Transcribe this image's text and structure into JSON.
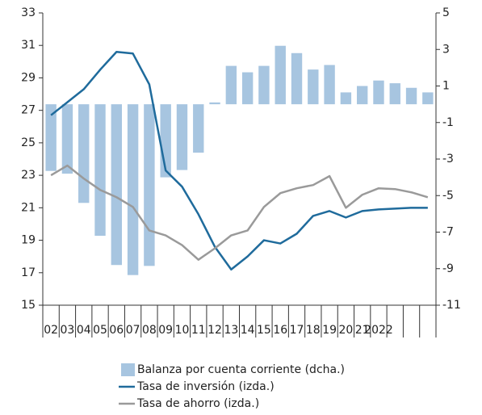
{
  "chart_data": {
    "type": "bar-line",
    "categories": [
      "02",
      "03",
      "04",
      "05",
      "06",
      "07",
      "08",
      "09",
      "10",
      "11",
      "12",
      "13",
      "14",
      "15",
      "16",
      "17",
      "18",
      "19",
      "20",
      "21",
      "2022",
      null,
      null,
      null
    ],
    "series": [
      {
        "name": "Balanza por cuenta corriente (dcha.)",
        "type": "bar",
        "axis": "y2",
        "color": "#a7c5e0",
        "values": [
          -3.65,
          -3.8,
          -5.4,
          -7.2,
          -8.8,
          -9.35,
          -8.85,
          -4.0,
          -3.6,
          -2.65,
          0.1,
          2.1,
          1.75,
          2.1,
          3.2,
          2.8,
          1.9,
          2.15,
          0.65,
          1.0,
          1.3,
          1.15,
          0.9,
          0.65
        ]
      },
      {
        "name": "Tasa de inversión (izda.)",
        "type": "line",
        "axis": "y",
        "color": "#1f6b9c",
        "values": [
          26.7,
          27.5,
          28.3,
          29.5,
          30.6,
          30.5,
          28.6,
          23.3,
          22.3,
          20.6,
          18.6,
          17.2,
          18.0,
          19.0,
          18.8,
          19.4,
          20.5,
          20.8,
          20.4,
          20.8,
          20.9,
          20.95,
          21.0,
          21.0
        ]
      },
      {
        "name": "Tasa de ahorro (izda.)",
        "type": "line",
        "axis": "y",
        "color": "#9a9a9a",
        "values": [
          23.0,
          23.6,
          22.8,
          22.1,
          21.65,
          21.05,
          19.6,
          19.3,
          18.7,
          17.8,
          18.5,
          19.3,
          19.6,
          21.05,
          21.9,
          22.2,
          22.4,
          22.95,
          21.0,
          21.8,
          22.2,
          22.15,
          21.95,
          21.65
        ]
      }
    ],
    "ylim": [
      15,
      33
    ],
    "yticks": [
      15,
      17,
      19,
      21,
      23,
      25,
      27,
      29,
      31,
      33
    ],
    "y2lim": [
      -11,
      5
    ],
    "y2ticks": [
      -11,
      -9,
      -7,
      -5,
      -3,
      -1,
      1,
      3,
      5
    ]
  }
}
